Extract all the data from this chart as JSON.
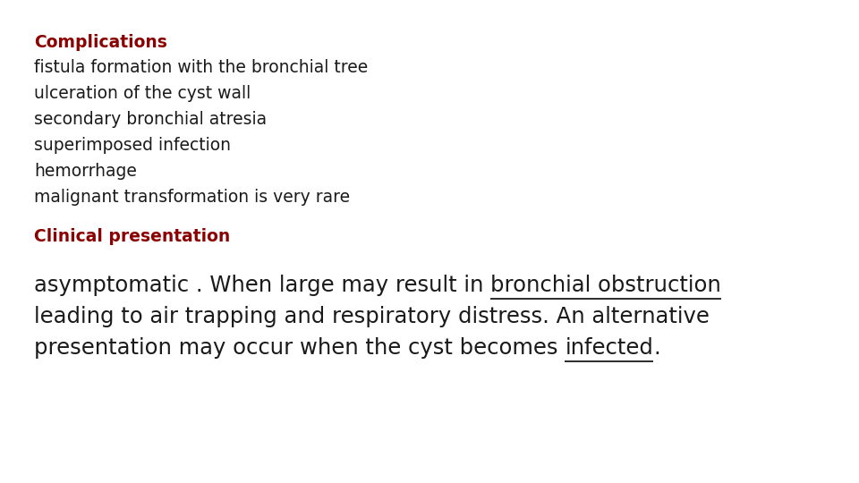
{
  "background_color": "#ffffff",
  "heading1": "Complications",
  "heading1_color": "#8B0000",
  "heading1_fontsize": 13.5,
  "bullet_lines": [
    "fistula formation with the bronchial tree",
    "ulceration of the cyst wall",
    "secondary bronchial atresia",
    "superimposed infection",
    "hemorrhage",
    "malignant transformation is very rare"
  ],
  "bullet_color": "#1a1a1a",
  "bullet_fontsize": 13.5,
  "heading2": "Clinical presentation",
  "heading2_color": "#8B0000",
  "heading2_fontsize": 13.5,
  "para_line1_normal": "asymptomatic . When large may result in ",
  "para_line1_under": "bronchial obstruction",
  "para_line2": "leading to air trapping and respiratory distress. An alternative",
  "para_line3_normal": "presentation may occur when the cyst becomes ",
  "para_line3_under": "infected",
  "para_line3_end": ".",
  "para_fontsize": 17.5,
  "para_color": "#1a1a1a",
  "fig_width": 9.6,
  "fig_height": 5.4,
  "dpi": 100
}
